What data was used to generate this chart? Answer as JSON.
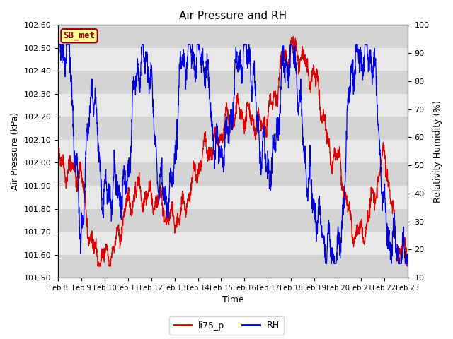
{
  "title": "Air Pressure and RH",
  "ylabel_left": "Air Pressure (kPa)",
  "ylabel_right": "Relativity Humidity (%)",
  "xlabel": "Time",
  "ylim_left": [
    101.5,
    102.6
  ],
  "ylim_right": [
    10,
    100
  ],
  "yticks_left": [
    101.5,
    101.6,
    101.7,
    101.8,
    101.9,
    102.0,
    102.1,
    102.2,
    102.3,
    102.4,
    102.5,
    102.6
  ],
  "yticks_right": [
    10,
    20,
    30,
    40,
    50,
    60,
    70,
    80,
    90,
    100
  ],
  "xtick_labels": [
    "Feb 8",
    "Feb 9",
    "Feb 10",
    "Feb 11",
    "Feb 12",
    "Feb 13",
    "Feb 14",
    "Feb 15",
    "Feb 16",
    "Feb 17",
    "Feb 18",
    "Feb 19",
    "Feb 20",
    "Feb 21",
    "Feb 22",
    "Feb 23"
  ],
  "legend_labels": [
    "li75_p",
    "RH"
  ],
  "line_colors": [
    "#dd0000",
    "#0000dd"
  ],
  "label_box_text": "SB_met",
  "label_box_facecolor": "#ffff99",
  "label_box_edgecolor": "#8B0000",
  "band_color_light": "#e8e8e8",
  "band_color_dark": "#d4d4d4",
  "title_fontsize": 11,
  "n_days": 15
}
